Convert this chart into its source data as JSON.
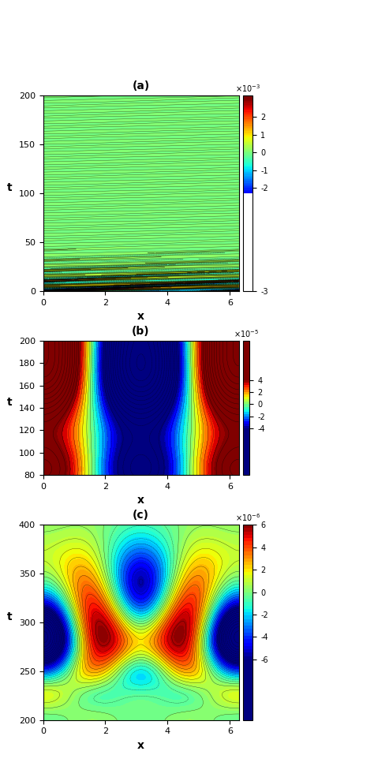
{
  "subplot_a": {
    "title": "(a)",
    "xlabel": "x",
    "ylabel": "t",
    "xlim": [
      0,
      6.28
    ],
    "ylim": [
      0,
      200
    ],
    "yticks": [
      0,
      50,
      100,
      150,
      200
    ],
    "xticks": [
      0,
      2,
      4,
      6
    ],
    "cbar_ticks": [
      -0.003,
      -0.002,
      -0.001,
      0,
      0.001,
      0.002
    ],
    "cbar_labels": [
      "-3",
      "-2",
      "-1",
      "0",
      "1",
      "2"
    ],
    "cbar_title": "x 10^{-3}",
    "vmin": -0.003,
    "vmax": 0.003
  },
  "subplot_b": {
    "title": "(b)",
    "xlabel": "x",
    "ylabel": "t",
    "xlim": [
      0,
      6.28
    ],
    "ylim": [
      80,
      200
    ],
    "yticks": [
      80,
      100,
      120,
      140,
      160,
      180,
      200
    ],
    "xticks": [
      0,
      2,
      4,
      6
    ],
    "cbar_ticks": [
      -4e-05,
      -2e-05,
      0,
      2e-05,
      4e-05
    ],
    "cbar_labels": [
      "-4",
      "-2",
      "0",
      "2",
      "4"
    ],
    "cbar_title": "x 10^{-5}",
    "vmin": -4e-05,
    "vmax": 4e-05
  },
  "subplot_c": {
    "title": "(c)",
    "xlabel": "x",
    "ylabel": "t",
    "xlim": [
      0,
      6.28
    ],
    "ylim": [
      200,
      400
    ],
    "yticks": [
      200,
      250,
      300,
      350,
      400
    ],
    "xticks": [
      0,
      2,
      4,
      6
    ],
    "cbar_ticks": [
      -6e-06,
      -4e-06,
      -2e-06,
      0,
      2e-06,
      4e-06,
      6e-06
    ],
    "cbar_labels": [
      "-6",
      "-4",
      "-2",
      "0",
      "2",
      "4",
      "6"
    ],
    "cbar_title": "x 10^{-6}",
    "vmin": -6e-06,
    "vmax": 6e-06
  }
}
